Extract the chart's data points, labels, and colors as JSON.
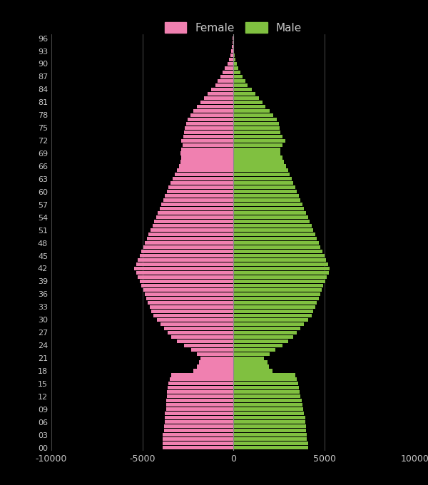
{
  "background_color": "#000000",
  "text_color": "#c8c8c8",
  "female_color": "#f080b0",
  "male_color": "#80c040",
  "xlim": [
    -10000,
    10000
  ],
  "xticks": [
    -10000,
    -5000,
    0,
    5000,
    10000
  ],
  "xtick_labels": [
    "-10000",
    "-5000",
    "0",
    "5000",
    "10000"
  ],
  "ages": [
    0,
    1,
    2,
    3,
    4,
    5,
    6,
    7,
    8,
    9,
    10,
    11,
    12,
    13,
    14,
    15,
    16,
    17,
    18,
    19,
    20,
    21,
    22,
    23,
    24,
    25,
    26,
    27,
    28,
    29,
    30,
    31,
    32,
    33,
    34,
    35,
    36,
    37,
    38,
    39,
    40,
    41,
    42,
    43,
    44,
    45,
    46,
    47,
    48,
    49,
    50,
    51,
    52,
    53,
    54,
    55,
    56,
    57,
    58,
    59,
    60,
    61,
    62,
    63,
    64,
    65,
    66,
    67,
    68,
    69,
    70,
    71,
    72,
    73,
    74,
    75,
    76,
    77,
    78,
    79,
    80,
    81,
    82,
    83,
    84,
    85,
    86,
    87,
    88,
    89,
    90,
    91,
    92,
    93,
    94,
    95,
    96
  ],
  "female": [
    3900,
    3900,
    3900,
    3900,
    3800,
    3800,
    3750,
    3750,
    3750,
    3700,
    3700,
    3700,
    3650,
    3650,
    3600,
    3550,
    3500,
    3400,
    2200,
    2000,
    1900,
    1800,
    2000,
    2300,
    2700,
    3100,
    3400,
    3600,
    3800,
    4000,
    4200,
    4400,
    4500,
    4600,
    4700,
    4800,
    4850,
    4950,
    5050,
    5150,
    5250,
    5350,
    5450,
    5350,
    5250,
    5150,
    5050,
    4950,
    4850,
    4750,
    4650,
    4550,
    4450,
    4350,
    4250,
    4150,
    4050,
    3950,
    3850,
    3750,
    3650,
    3550,
    3450,
    3350,
    3200,
    3100,
    3000,
    2900,
    2850,
    2900,
    2850,
    2800,
    2850,
    2750,
    2700,
    2650,
    2600,
    2500,
    2350,
    2200,
    2000,
    1800,
    1600,
    1400,
    1200,
    1000,
    850,
    700,
    580,
    460,
    330,
    240,
    170,
    110,
    75,
    50,
    30
  ],
  "male": [
    4100,
    4100,
    4050,
    4050,
    4000,
    4000,
    3950,
    3950,
    3900,
    3850,
    3800,
    3750,
    3700,
    3650,
    3600,
    3550,
    3500,
    3400,
    2150,
    1950,
    1900,
    1700,
    2000,
    2300,
    2700,
    3000,
    3300,
    3500,
    3700,
    3900,
    4100,
    4300,
    4400,
    4500,
    4600,
    4700,
    4800,
    4850,
    4950,
    5050,
    5150,
    5250,
    5300,
    5200,
    5100,
    5000,
    4900,
    4800,
    4700,
    4600,
    4500,
    4400,
    4300,
    4200,
    4100,
    4000,
    3900,
    3800,
    3700,
    3600,
    3500,
    3400,
    3300,
    3200,
    3100,
    3000,
    2900,
    2800,
    2700,
    2600,
    2600,
    2700,
    2850,
    2700,
    2600,
    2550,
    2500,
    2400,
    2200,
    2000,
    1750,
    1600,
    1400,
    1200,
    1000,
    800,
    650,
    500,
    380,
    280,
    180,
    120,
    80,
    50,
    30,
    15,
    8
  ]
}
